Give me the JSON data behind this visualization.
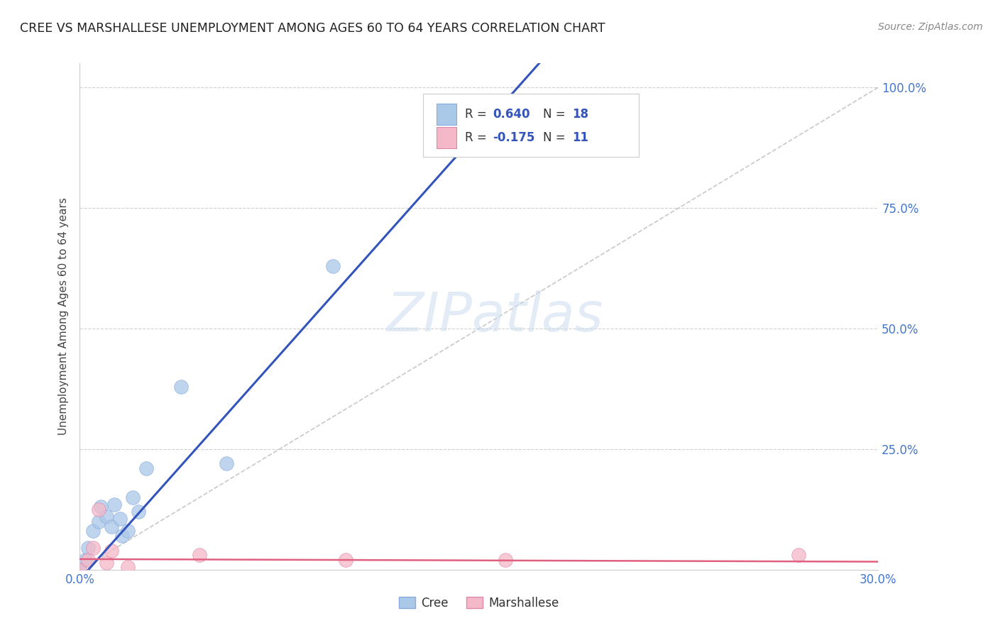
{
  "title": "CREE VS MARSHALLESE UNEMPLOYMENT AMONG AGES 60 TO 64 YEARS CORRELATION CHART",
  "source": "Source: ZipAtlas.com",
  "ylabel": "Unemployment Among Ages 60 to 64 years",
  "xlim": [
    0.0,
    0.3
  ],
  "ylim": [
    0.0,
    1.05
  ],
  "background_color": "#ffffff",
  "grid_color": "#d0d0d0",
  "watermark_text": "ZIPatlas",
  "cree_color": "#aac8e8",
  "marshallese_color": "#f5b8c8",
  "cree_line_color": "#3355bb",
  "marshallese_line_color": "#e06080",
  "diagonal_color": "#bbbbbb",
  "legend_R_cree": "R = 0.640",
  "legend_N_cree": "N = 18",
  "legend_R_marsh": "R = -0.175",
  "legend_N_marsh": "N = 11",
  "cree_x": [
    0.0,
    0.002,
    0.003,
    0.005,
    0.007,
    0.008,
    0.01,
    0.012,
    0.013,
    0.015,
    0.016,
    0.018,
    0.02,
    0.022,
    0.025,
    0.038,
    0.055,
    0.095
  ],
  "cree_y": [
    0.0,
    0.02,
    0.045,
    0.08,
    0.1,
    0.13,
    0.11,
    0.09,
    0.135,
    0.105,
    0.07,
    0.08,
    0.15,
    0.12,
    0.21,
    0.38,
    0.22,
    0.63
  ],
  "marshallese_x": [
    0.0,
    0.003,
    0.005,
    0.007,
    0.01,
    0.012,
    0.018,
    0.045,
    0.1,
    0.16,
    0.27
  ],
  "marshallese_y": [
    0.0,
    0.02,
    0.045,
    0.125,
    0.015,
    0.04,
    0.005,
    0.03,
    0.02,
    0.02,
    0.03
  ],
  "cree_slope": 6.2,
  "cree_intercept": -0.02,
  "marsh_slope": -0.018,
  "marsh_intercept": 0.022,
  "ytick_positions": [
    0.25,
    0.5,
    0.75,
    1.0
  ],
  "ytick_labels": [
    "25.0%",
    "50.0%",
    "75.0%",
    "100.0%"
  ],
  "xtick_positions": [
    0.0,
    0.3
  ],
  "xtick_labels": [
    "0.0%",
    "30.0%"
  ]
}
